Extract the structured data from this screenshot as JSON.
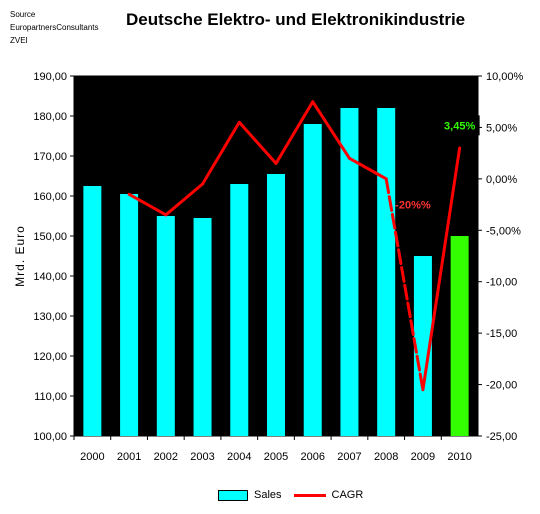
{
  "header": {
    "source_lines": [
      "Source",
      "EuropartnersConsultants",
      "ZVEI"
    ],
    "title": "Deutsche Elektro- und Elektronikindustrie"
  },
  "legend": {
    "sales_label": "Sales",
    "cagr_label": "CAGR"
  },
  "chart_data": {
    "type": "bar",
    "title": "Deutsche Elektro- und Elektronikindustrie",
    "categories": [
      "2000",
      "2001",
      "2002",
      "2003",
      "2004",
      "2005",
      "2006",
      "2007",
      "2008",
      "2009",
      "2010"
    ],
    "ylabel": "Mrd. Euro",
    "ylim": [
      100,
      190
    ],
    "y_ticks": [
      "100,00",
      "110,00",
      "120,00",
      "130,00",
      "140,00",
      "150,00",
      "160,00",
      "170,00",
      "180,00",
      "190,00"
    ],
    "y2lim": [
      -25,
      10
    ],
    "y2_ticks": [
      "-25,00",
      "-20,00",
      "-15,00",
      "-10,00",
      "-5,00%",
      "0,00%",
      "5,00%",
      "10,00%"
    ],
    "background_color": "#000000",
    "grid": false,
    "legend_position": "bottom",
    "series": [
      {
        "name": "Sales",
        "kind": "bar",
        "axis": "left",
        "color": "#00ffff",
        "highlight_color": "#33ff00",
        "highlight_index": 10,
        "values": [
          162.5,
          160.5,
          155,
          154.5,
          163,
          165.5,
          178,
          182,
          182,
          145,
          150
        ]
      },
      {
        "name": "CAGR",
        "kind": "line",
        "axis": "right",
        "color": "#ff0000",
        "values": [
          null,
          -1.5,
          -3.5,
          -0.5,
          5.5,
          1.5,
          7.5,
          2,
          0,
          -20.5,
          3
        ],
        "dashed_segment": [
          8,
          9
        ]
      }
    ],
    "annotations": [
      {
        "text": "-20%%",
        "point_index": 9,
        "color": "#ff3333",
        "box": false
      },
      {
        "text": "3,45%",
        "point_index": 10,
        "color": "#33ff00",
        "box": true
      }
    ]
  }
}
